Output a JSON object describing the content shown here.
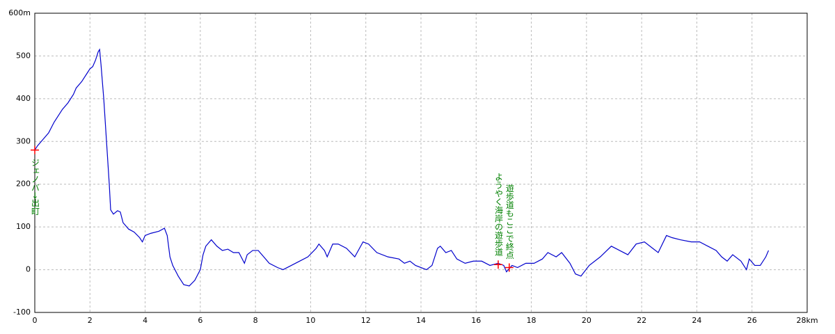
{
  "chart_data": {
    "type": "line",
    "x": [
      0,
      0.1,
      0.3,
      0.5,
      0.7,
      1.0,
      1.2,
      1.4,
      1.5,
      1.7,
      1.9,
      2.0,
      2.1,
      2.2,
      2.3,
      2.35,
      2.4,
      2.5,
      2.6,
      2.7,
      2.75,
      2.85,
      3.0,
      3.1,
      3.2,
      3.4,
      3.6,
      3.8,
      3.9,
      4.0,
      4.2,
      4.5,
      4.7,
      4.8,
      4.9,
      5.0,
      5.2,
      5.4,
      5.6,
      5.8,
      6.0,
      6.1,
      6.2,
      6.4,
      6.6,
      6.8,
      7.0,
      7.2,
      7.4,
      7.6,
      7.7,
      7.9,
      8.1,
      8.3,
      8.5,
      8.8,
      9.0,
      9.3,
      9.6,
      9.9,
      10.2,
      10.3,
      10.5,
      10.6,
      10.8,
      11.0,
      11.3,
      11.6,
      11.9,
      12.1,
      12.4,
      12.8,
      13.2,
      13.4,
      13.6,
      13.8,
      14.2,
      14.4,
      14.6,
      14.7,
      14.9,
      15.1,
      15.3,
      15.6,
      15.9,
      16.2,
      16.5,
      16.8,
      17.0,
      17.1,
      17.3,
      17.5,
      17.8,
      18.1,
      18.4,
      18.6,
      18.9,
      19.1,
      19.4,
      19.6,
      19.8,
      20.1,
      20.5,
      20.9,
      21.2,
      21.5,
      21.8,
      22.1,
      22.4,
      22.6,
      22.9,
      23.1,
      23.4,
      23.8,
      24.1,
      24.4,
      24.7,
      24.9,
      25.1,
      25.3,
      25.6,
      25.8,
      25.9,
      26.1,
      26.3,
      26.5,
      26.6
    ],
    "series": [
      {
        "color": "#0000cc",
        "values": [
          280,
          290,
          305,
          320,
          345,
          375,
          390,
          410,
          425,
          440,
          460,
          470,
          475,
          490,
          510,
          515,
          480,
          400,
          300,
          200,
          140,
          130,
          138,
          135,
          110,
          95,
          88,
          75,
          65,
          80,
          85,
          90,
          97,
          80,
          30,
          10,
          -15,
          -35,
          -38,
          -25,
          0,
          35,
          55,
          70,
          55,
          45,
          48,
          40,
          40,
          15,
          35,
          45,
          45,
          30,
          15,
          5,
          0,
          10,
          20,
          30,
          50,
          60,
          45,
          30,
          60,
          60,
          50,
          30,
          65,
          60,
          40,
          30,
          25,
          15,
          20,
          10,
          0,
          10,
          50,
          55,
          40,
          45,
          25,
          15,
          20,
          20,
          10,
          15,
          10,
          -5,
          10,
          5,
          15,
          15,
          25,
          40,
          30,
          40,
          15,
          -10,
          -15,
          10,
          30,
          55,
          45,
          35,
          60,
          65,
          50,
          40,
          80,
          75,
          70,
          65,
          65,
          55,
          45,
          30,
          20,
          35,
          20,
          0,
          25,
          10,
          10,
          30,
          45
        ]
      }
    ],
    "xlim": [
      0,
      28
    ],
    "xticks": [
      0,
      2,
      4,
      6,
      8,
      10,
      12,
      14,
      16,
      18,
      20,
      22,
      24,
      26,
      {
        "value": 28,
        "label": "28km"
      }
    ],
    "ylim": [
      -100,
      600
    ],
    "yticks": [
      -100,
      0,
      100,
      200,
      300,
      400,
      500,
      {
        "value": 600,
        "label": "600m"
      }
    ],
    "grid": true,
    "waypoints": [
      {
        "x": 0,
        "y": 280,
        "label": "ジェノバ→出町",
        "color": "#ff0000"
      },
      {
        "x": 16.8,
        "y": 12,
        "label": "ようやく海岸の遊歩道",
        "color": "#ff0000"
      },
      {
        "x": 17.2,
        "y": 5,
        "label": "遊歩道もここで終点",
        "color": "#ff0000"
      }
    ]
  }
}
